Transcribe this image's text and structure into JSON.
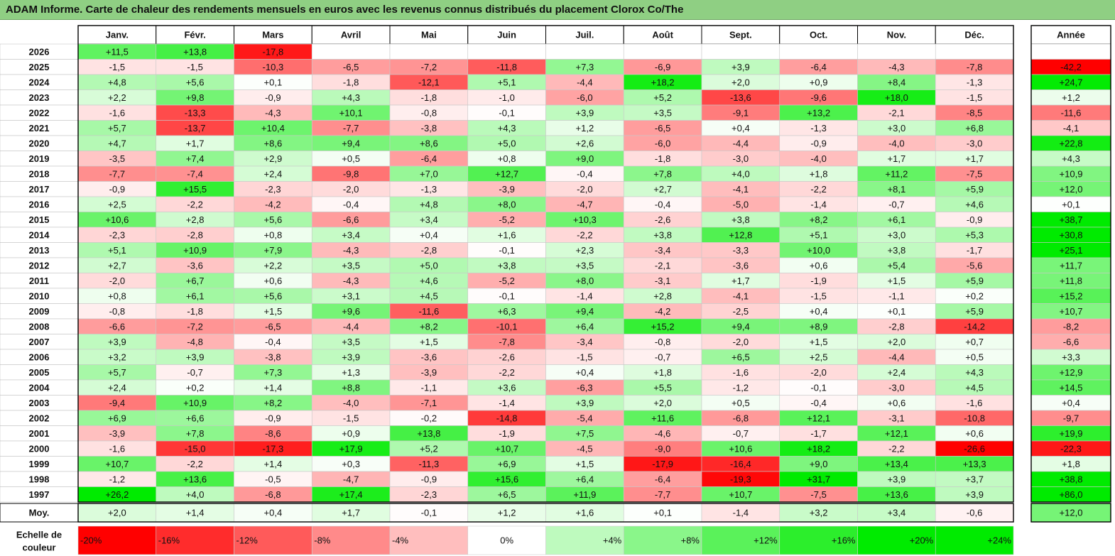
{
  "title": "ADAM Informe. Carte de chaleur des rendements mensuels en euros avec les revenus connus distribués du placement Clorox Co/The",
  "chart_data": {
    "type": "heatmap",
    "months": [
      "Janv.",
      "Févr.",
      "Mars",
      "Avril",
      "Mai",
      "Juin",
      "Juil.",
      "Août",
      "Sept.",
      "Oct.",
      "Nov.",
      "Déc."
    ],
    "year_header": "Année",
    "rows": [
      {
        "year": "2026",
        "values": [
          "+11,5",
          "+13,8",
          "-17,8",
          "",
          "",
          "",
          "",
          "",
          "",
          "",
          "",
          ""
        ],
        "total": ""
      },
      {
        "year": "2025",
        "values": [
          "-1,5",
          "-1,5",
          "-10,3",
          "-6,5",
          "-7,2",
          "-11,8",
          "+7,3",
          "-6,9",
          "+3,9",
          "-6,4",
          "-4,3",
          "-7,8"
        ],
        "total": "-42,2"
      },
      {
        "year": "2024",
        "values": [
          "+4,8",
          "+5,6",
          "+0,1",
          "-1,8",
          "-12,1",
          "+5,1",
          "-4,4",
          "+18,2",
          "+2,0",
          "+0,9",
          "+8,4",
          "-1,3"
        ],
        "total": "+24,7"
      },
      {
        "year": "2023",
        "values": [
          "+2,2",
          "+9,8",
          "-0,9",
          "+4,3",
          "-1,8",
          "-1,0",
          "-6,0",
          "+5,2",
          "-13,6",
          "-9,6",
          "+18,0",
          "-1,5"
        ],
        "total": "+1,2"
      },
      {
        "year": "2022",
        "values": [
          "-1,6",
          "-13,3",
          "-4,3",
          "+10,1",
          "-0,8",
          "-0,1",
          "+3,9",
          "+3,5",
          "-9,1",
          "+13,2",
          "-2,1",
          "-8,5"
        ],
        "total": "-11,6"
      },
      {
        "year": "2021",
        "values": [
          "+5,7",
          "-13,7",
          "+10,4",
          "-7,7",
          "-3,8",
          "+4,3",
          "+1,2",
          "-6,5",
          "+0,4",
          "-1,3",
          "+3,0",
          "+6,8"
        ],
        "total": "-4,1"
      },
      {
        "year": "2020",
        "values": [
          "+4,7",
          "+1,7",
          "+8,6",
          "+9,4",
          "+8,6",
          "+5,0",
          "+2,6",
          "-6,0",
          "-4,4",
          "-0,9",
          "-4,0",
          "-3,0"
        ],
        "total": "+22,8"
      },
      {
        "year": "2019",
        "values": [
          "-3,5",
          "+7,4",
          "+2,9",
          "+0,5",
          "-6,4",
          "+0,8",
          "+9,0",
          "-1,8",
          "-3,0",
          "-4,0",
          "+1,7",
          "+1,7"
        ],
        "total": "+4,3"
      },
      {
        "year": "2018",
        "values": [
          "-7,7",
          "-7,4",
          "+2,4",
          "-9,8",
          "+7,0",
          "+12,7",
          "-0,4",
          "+7,8",
          "+4,0",
          "+1,8",
          "+11,2",
          "-7,5"
        ],
        "total": "+10,9"
      },
      {
        "year": "2017",
        "values": [
          "-0,9",
          "+15,5",
          "-2,3",
          "-2,0",
          "-1,3",
          "-3,9",
          "-2,0",
          "+2,7",
          "-4,1",
          "-2,2",
          "+8,1",
          "+5,9"
        ],
        "total": "+12,0"
      },
      {
        "year": "2016",
        "values": [
          "+2,5",
          "-2,2",
          "-4,2",
          "-0,4",
          "+4,8",
          "+8,0",
          "-4,7",
          "-0,4",
          "-5,0",
          "-1,4",
          "-0,7",
          "+4,6"
        ],
        "total": "+0,1"
      },
      {
        "year": "2015",
        "values": [
          "+10,6",
          "+2,8",
          "+5,6",
          "-6,6",
          "+3,4",
          "-5,2",
          "+10,3",
          "-2,6",
          "+3,8",
          "+8,2",
          "+6,1",
          "-0,9"
        ],
        "total": "+38,7"
      },
      {
        "year": "2014",
        "values": [
          "-2,3",
          "-2,8",
          "+0,8",
          "+3,4",
          "+0,4",
          "+1,6",
          "-2,2",
          "+3,8",
          "+12,8",
          "+5,1",
          "+3,0",
          "+5,3"
        ],
        "total": "+30,8"
      },
      {
        "year": "2013",
        "values": [
          "+5,1",
          "+10,9",
          "+7,9",
          "-4,3",
          "-2,8",
          "-0,1",
          "+2,3",
          "-3,4",
          "-3,3",
          "+10,0",
          "+3,8",
          "-1,7"
        ],
        "total": "+25,1"
      },
      {
        "year": "2012",
        "values": [
          "+2,7",
          "-3,6",
          "+2,2",
          "+3,5",
          "+5,0",
          "+3,8",
          "+3,5",
          "-2,1",
          "-3,6",
          "+0,6",
          "+5,4",
          "-5,6"
        ],
        "total": "+11,7"
      },
      {
        "year": "2011",
        "values": [
          "-2,0",
          "+6,7",
          "+0,6",
          "-4,3",
          "+4,6",
          "-5,2",
          "+8,0",
          "-3,1",
          "+1,7",
          "-1,9",
          "+1,5",
          "+5,9"
        ],
        "total": "+11,8"
      },
      {
        "year": "2010",
        "values": [
          "+0,8",
          "+6,1",
          "+5,6",
          "+3,1",
          "+4,5",
          "-0,1",
          "-1,4",
          "+2,8",
          "-4,1",
          "-1,5",
          "-1,1",
          "+0,2"
        ],
        "total": "+15,2"
      },
      {
        "year": "2009",
        "values": [
          "-0,8",
          "-1,8",
          "+1,5",
          "+9,6",
          "-11,6",
          "+6,3",
          "+9,4",
          "-4,2",
          "-2,5",
          "+0,4",
          "+0,1",
          "+5,9"
        ],
        "total": "+10,7"
      },
      {
        "year": "2008",
        "values": [
          "-6,6",
          "-7,2",
          "-6,5",
          "-4,4",
          "+8,2",
          "-10,1",
          "+6,4",
          "+15,2",
          "+9,4",
          "+8,9",
          "-2,8",
          "-14,2"
        ],
        "total": "-8,2"
      },
      {
        "year": "2007",
        "values": [
          "+3,9",
          "-4,8",
          "-0,4",
          "+3,5",
          "+1,5",
          "-7,8",
          "-3,4",
          "-0,8",
          "-2,0",
          "+1,5",
          "+2,0",
          "+0,7"
        ],
        "total": "-6,6"
      },
      {
        "year": "2006",
        "values": [
          "+3,2",
          "+3,9",
          "-3,8",
          "+3,9",
          "-3,6",
          "-2,6",
          "-1,5",
          "-0,7",
          "+6,5",
          "+2,5",
          "-4,4",
          "+0,5"
        ],
        "total": "+3,3"
      },
      {
        "year": "2005",
        "values": [
          "+5,7",
          "-0,7",
          "+7,3",
          "+1,3",
          "-3,9",
          "-2,2",
          "+0,4",
          "+1,8",
          "-1,6",
          "-2,0",
          "+2,4",
          "+4,3"
        ],
        "total": "+12,9"
      },
      {
        "year": "2004",
        "values": [
          "+2,4",
          "+0,2",
          "+1,4",
          "+8,8",
          "-1,1",
          "+3,6",
          "-6,3",
          "+5,5",
          "-1,2",
          "-0,1",
          "-3,0",
          "+4,5"
        ],
        "total": "+14,5"
      },
      {
        "year": "2003",
        "values": [
          "-9,4",
          "+10,9",
          "+8,2",
          "-4,0",
          "-7,1",
          "-1,4",
          "+3,9",
          "+2,0",
          "+0,5",
          "-0,4",
          "+0,6",
          "-1,6"
        ],
        "total": "+0,4"
      },
      {
        "year": "2002",
        "values": [
          "+6,9",
          "+6,6",
          "-0,9",
          "-1,5",
          "-0,2",
          "-14,8",
          "-5,4",
          "+11,6",
          "-6,8",
          "+12,1",
          "-3,1",
          "-10,8"
        ],
        "total": "-9,7"
      },
      {
        "year": "2001",
        "values": [
          "-3,9",
          "+7,8",
          "-8,6",
          "+0,9",
          "+13,8",
          "-1,9",
          "+7,5",
          "-4,6",
          "-0,7",
          "-1,7",
          "+12,1",
          "+0,6"
        ],
        "total": "+19,9"
      },
      {
        "year": "2000",
        "values": [
          "-1,6",
          "-15,0",
          "-17,3",
          "+17,9",
          "+5,2",
          "+10,7",
          "-4,5",
          "-9,0",
          "+10,6",
          "+18,2",
          "-2,2",
          "-26,6"
        ],
        "total": "-22,3"
      },
      {
        "year": "1999",
        "values": [
          "+10,7",
          "-2,2",
          "+1,4",
          "+0,3",
          "-11,3",
          "+6,9",
          "+1,5",
          "-17,9",
          "-16,4",
          "+9,0",
          "+13,4",
          "+13,3"
        ],
        "total": "+1,8"
      },
      {
        "year": "1998",
        "values": [
          "-1,2",
          "+13,6",
          "-0,5",
          "-4,7",
          "-0,9",
          "+15,6",
          "+6,4",
          "-6,4",
          "-19,3",
          "+31,7",
          "+3,9",
          "+3,7"
        ],
        "total": "+38,8"
      },
      {
        "year": "1997",
        "values": [
          "+26,2",
          "+4,0",
          "-6,8",
          "+17,4",
          "-2,3",
          "+6,5",
          "+11,9",
          "-7,7",
          "+10,7",
          "-7,5",
          "+13,6",
          "+3,9"
        ],
        "total": "+86,0"
      }
    ],
    "average": {
      "label": "Moy.",
      "values": [
        "+2,0",
        "+1,4",
        "+0,4",
        "+1,7",
        "-0,1",
        "+1,2",
        "+1,6",
        "+0,1",
        "-1,4",
        "+3,2",
        "+3,4",
        "-0,6"
      ],
      "total": "+12,0"
    },
    "scale": {
      "label_line1": "Echelle de",
      "label_line2": "couleur",
      "steps": [
        "-20%",
        "-16%",
        "-12%",
        "-8%",
        "-4%",
        "0%",
        "+4%",
        "+8%",
        "+12%",
        "+16%",
        "+20%",
        "+24%"
      ]
    },
    "colors": {
      "negative_max": "#ff0000",
      "neutral": "#ffffff",
      "positive_max": "#00ff00",
      "title_bar": "#8fcf83"
    }
  }
}
